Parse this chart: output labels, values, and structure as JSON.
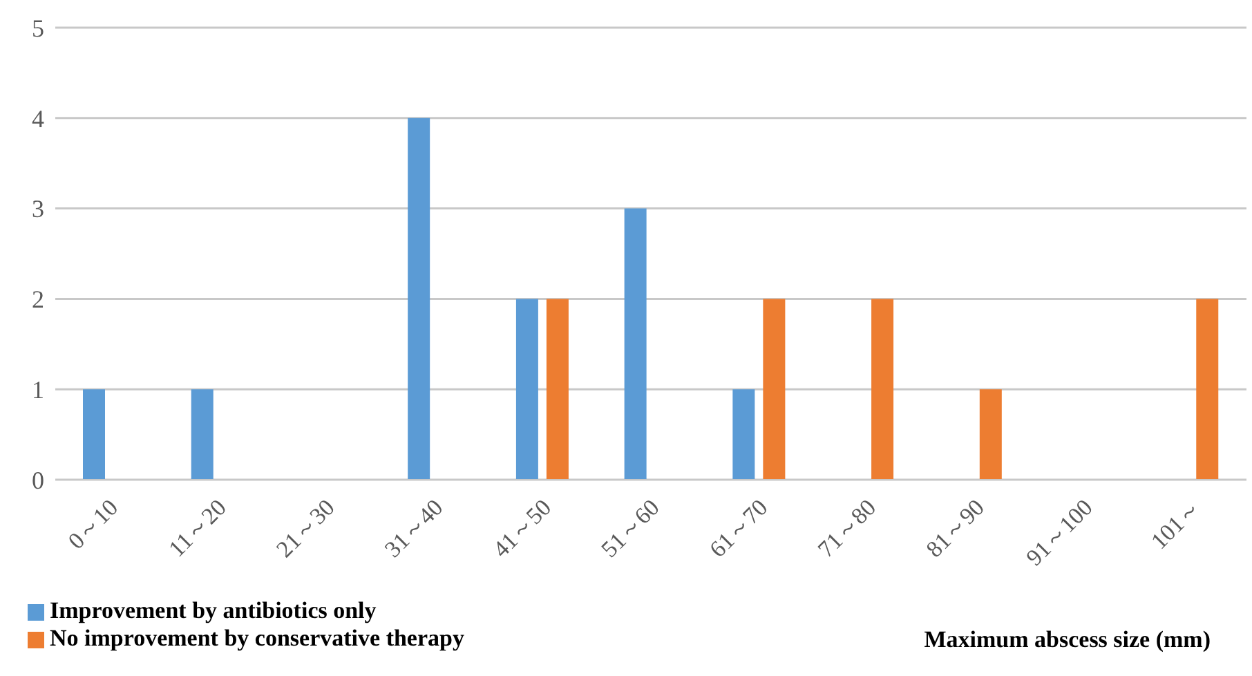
{
  "chart_data": {
    "type": "bar",
    "categories": [
      "0～10",
      "11～20",
      "21～30",
      "31～40",
      "41～50",
      "51～60",
      "61～70",
      "71～80",
      "81～90",
      "91～100",
      "101～"
    ],
    "series": [
      {
        "name": "Improvement by antibiotics only",
        "color": "#5b9bd5",
        "values": [
          1,
          1,
          0,
          4,
          2,
          3,
          1,
          0,
          0,
          0,
          0
        ]
      },
      {
        "name": "No improvement by conservative therapy",
        "color": "#ed7d31",
        "values": [
          0,
          0,
          0,
          0,
          2,
          0,
          2,
          2,
          1,
          0,
          2
        ]
      }
    ],
    "xlabel": "Maximum abscess size (mm)",
    "ylim": [
      0,
      5
    ],
    "yticks": [
      0,
      1,
      2,
      3,
      4,
      5
    ],
    "grid": "y",
    "legend": "bottom left"
  }
}
